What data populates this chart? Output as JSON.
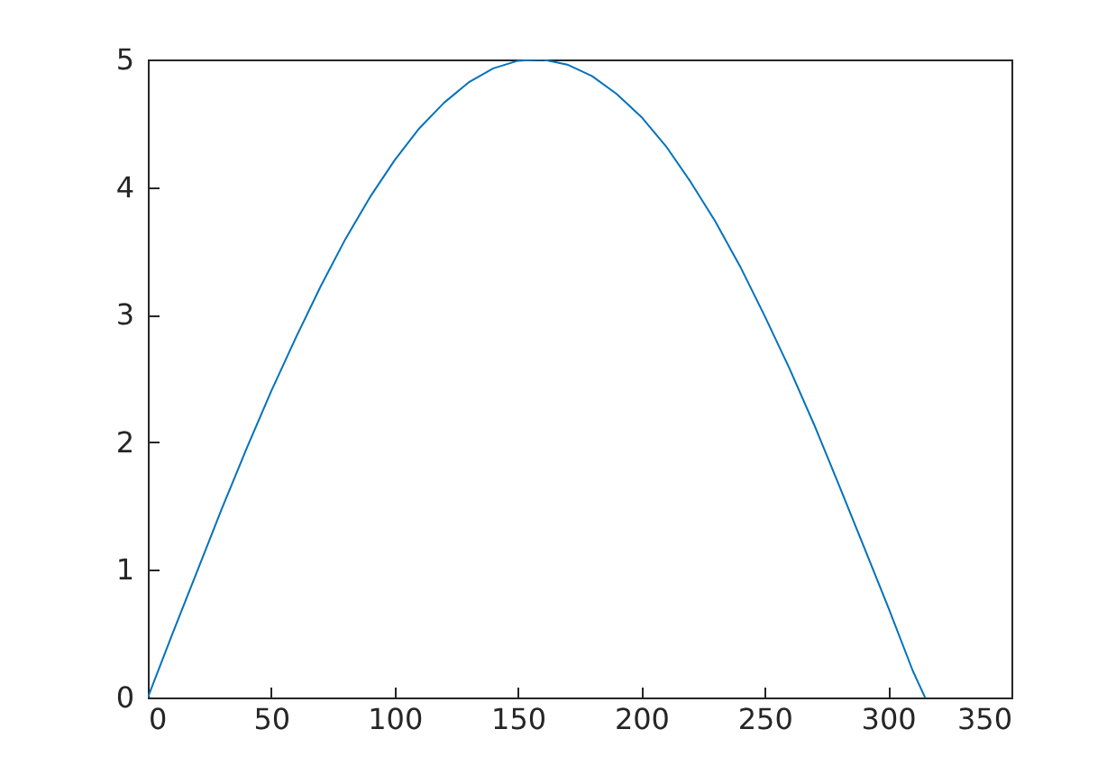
{
  "chart_data": {
    "type": "line",
    "x": [
      0,
      10,
      20,
      30,
      40,
      50,
      60,
      70,
      80,
      90,
      100,
      110,
      120,
      130,
      140,
      150,
      160,
      170,
      180,
      190,
      200,
      210,
      220,
      230,
      240,
      250,
      260,
      270,
      280,
      290,
      300,
      310,
      315
    ],
    "series": [
      {
        "color": "#0072bd",
        "values": [
          0,
          0.5,
          0.99,
          1.48,
          1.95,
          2.4,
          2.82,
          3.22,
          3.59,
          3.92,
          4.21,
          4.46,
          4.66,
          4.82,
          4.93,
          4.99,
          5.0,
          4.96,
          4.87,
          4.73,
          4.55,
          4.32,
          4.04,
          3.73,
          3.38,
          2.99,
          2.58,
          2.14,
          1.67,
          1.19,
          0.71,
          0.21,
          0
        ]
      }
    ],
    "xlim": [
      0,
      350
    ],
    "xticks": [
      0,
      50,
      100,
      150,
      200,
      250,
      300,
      350
    ],
    "ylim": [
      0,
      5
    ],
    "yticks": [
      0,
      1,
      2,
      3,
      4,
      5
    ],
    "grid": false,
    "marker": "none",
    "line_style": "solid"
  }
}
